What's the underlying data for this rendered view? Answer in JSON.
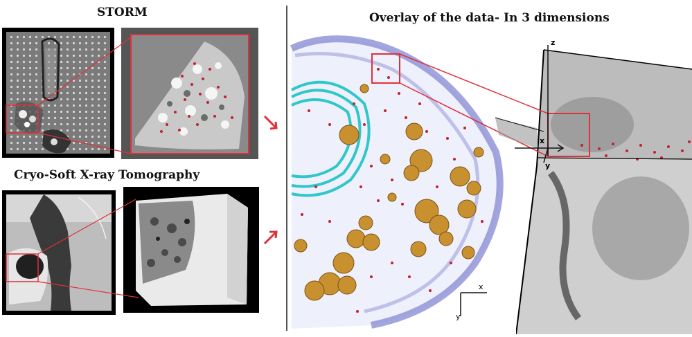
{
  "titles": {
    "storm": "STORM",
    "cryo": "Cryo-Soft X-ray Tomography",
    "overlay": "Overlay of the data- In 3 dimensions"
  },
  "axes": {
    "bottom": {
      "x": "x",
      "y": "y"
    },
    "right": {
      "x": "x",
      "y": "y",
      "z": "z"
    }
  },
  "colors": {
    "highlight": "#e0303a",
    "membrane": "#8c8fd6",
    "organelle": "#2fc7c9",
    "granule": "#c8902f",
    "dots": "#c4202f"
  }
}
